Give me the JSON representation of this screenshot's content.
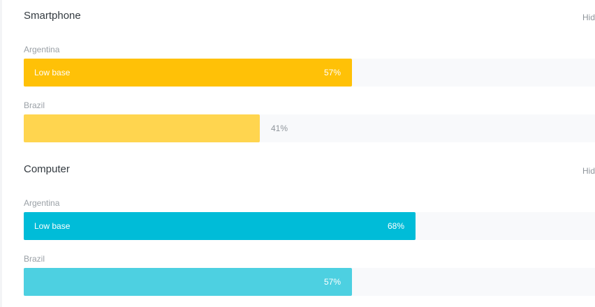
{
  "sections": [
    {
      "title": "Smartphone",
      "hide_label": "Hid",
      "rows": [
        {
          "country": "Argentina",
          "badge": "Low base",
          "value": 57,
          "value_label": "57%",
          "color": "#ffc107",
          "label_inside": true
        },
        {
          "country": "Brazil",
          "badge": "",
          "value": 41,
          "value_label": "41%",
          "color": "#ffd54f",
          "label_inside": false
        }
      ]
    },
    {
      "title": "Computer",
      "hide_label": "Hid",
      "rows": [
        {
          "country": "Argentina",
          "badge": "Low base",
          "value": 68,
          "value_label": "68%",
          "color": "#00bcd8",
          "label_inside": true
        },
        {
          "country": "Brazil",
          "badge": "",
          "value": 57,
          "value_label": "57%",
          "color": "#4dd0e1",
          "label_inside": true
        }
      ]
    }
  ]
}
